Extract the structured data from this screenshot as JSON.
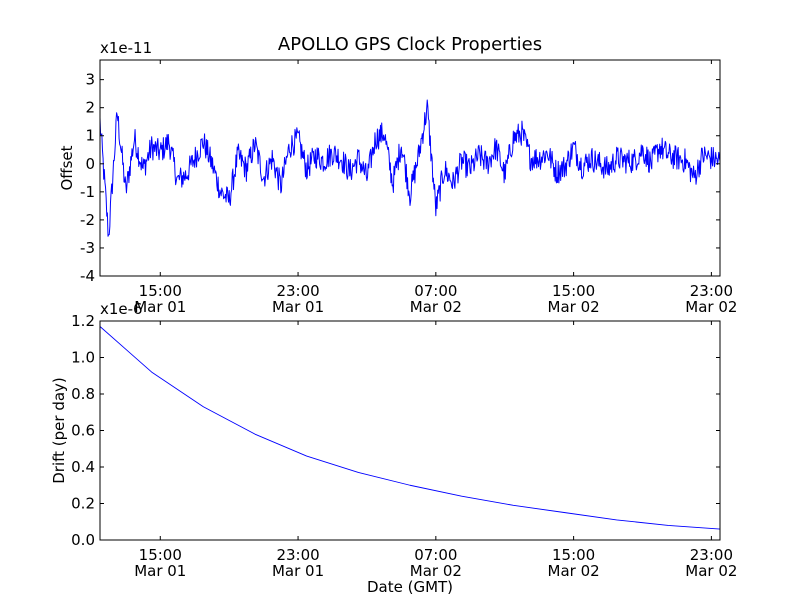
{
  "figure": {
    "title": "APOLLO GPS Clock Properties"
  },
  "chart_data": [
    {
      "type": "line",
      "title": "APOLLO GPS Clock Properties",
      "ylabel": "Offset",
      "xlabel": "",
      "y_multiplier_label": "x1e-11",
      "ylim": [
        -4,
        3.7
      ],
      "y_ticks": [
        -4,
        -3,
        -2,
        -1,
        0,
        1,
        2,
        3
      ],
      "x_ticks": [
        {
          "time": "15:00",
          "date": "Mar 01"
        },
        {
          "time": "23:00",
          "date": "Mar 01"
        },
        {
          "time": "07:00",
          "date": "Mar 02"
        },
        {
          "time": "15:00",
          "date": "Mar 02"
        },
        {
          "time": "23:00",
          "date": "Mar 02"
        }
      ],
      "xlim": [
        "Mar 01 11:30",
        "Mar 02 23:30"
      ],
      "grid": false,
      "series": [
        {
          "color": "#0000ff",
          "x": [
            "Mar 01 11:30",
            "Mar 01 12:00",
            "Mar 01 12:30",
            "Mar 01 13:00",
            "Mar 01 13:30",
            "Mar 01 14:00",
            "Mar 01 14:30",
            "Mar 01 15:00",
            "Mar 01 15:30",
            "Mar 01 16:00",
            "Mar 01 16:30",
            "Mar 01 17:00",
            "Mar 01 17:30",
            "Mar 01 18:00",
            "Mar 01 18:30",
            "Mar 01 19:00",
            "Mar 01 19:30",
            "Mar 01 20:00",
            "Mar 01 20:30",
            "Mar 01 21:00",
            "Mar 01 21:30",
            "Mar 01 22:00",
            "Mar 01 22:30",
            "Mar 01 23:00",
            "Mar 01 23:30",
            "Mar 02 00:00",
            "Mar 02 00:30",
            "Mar 02 01:00",
            "Mar 02 01:30",
            "Mar 02 02:00",
            "Mar 02 02:30",
            "Mar 02 03:00",
            "Mar 02 03:30",
            "Mar 02 04:00",
            "Mar 02 04:30",
            "Mar 02 05:00",
            "Mar 02 05:30",
            "Mar 02 06:00",
            "Mar 02 06:30",
            "Mar 02 07:00",
            "Mar 02 07:30",
            "Mar 02 08:00",
            "Mar 02 08:30",
            "Mar 02 09:00",
            "Mar 02 09:30",
            "Mar 02 10:00",
            "Mar 02 10:30",
            "Mar 02 11:00",
            "Mar 02 11:30",
            "Mar 02 12:00",
            "Mar 02 12:30",
            "Mar 02 13:00",
            "Mar 02 13:30",
            "Mar 02 14:00",
            "Mar 02 14:30",
            "Mar 02 15:00",
            "Mar 02 15:30",
            "Mar 02 16:00",
            "Mar 02 16:30",
            "Mar 02 17:00",
            "Mar 02 17:30",
            "Mar 02 18:00",
            "Mar 02 18:30",
            "Mar 02 19:00",
            "Mar 02 19:30",
            "Mar 02 20:00",
            "Mar 02 20:30",
            "Mar 02 21:00",
            "Mar 02 21:30",
            "Mar 02 22:00",
            "Mar 02 22:30",
            "Mar 02 23:00",
            "Mar 02 23:30"
          ],
          "y": [
            1.5,
            -2.6,
            1.8,
            -1.0,
            0.9,
            -0.2,
            0.6,
            0.4,
            0.8,
            -0.6,
            -0.4,
            0.2,
            0.8,
            0.0,
            -1.0,
            -1.3,
            0.3,
            -0.2,
            0.7,
            -0.5,
            0.2,
            -0.8,
            0.6,
            0.9,
            -0.2,
            0.3,
            0.1,
            0.4,
            0.2,
            -0.3,
            0.2,
            -0.5,
            0.9,
            1.1,
            -0.7,
            0.7,
            -1.1,
            0.3,
            2.0,
            -1.6,
            -0.2,
            -0.7,
            0.1,
            -0.2,
            0.3,
            0.0,
            0.6,
            -0.4,
            0.9,
            1.1,
            0.2,
            0.2,
            0.4,
            -0.3,
            -0.1,
            0.6,
            -0.1,
            0.2,
            0.0,
            -0.2,
            0.2,
            0.1,
            0.1,
            0.5,
            0.0,
            0.6,
            0.3,
            0.2,
            0.1,
            -0.5,
            0.3,
            0.2,
            0.1
          ]
        }
      ]
    },
    {
      "type": "line",
      "ylabel": "Drift (per day)",
      "xlabel": "Date (GMT)",
      "y_multiplier_label": "x1e-6",
      "ylim": [
        0.0,
        1.2
      ],
      "y_ticks": [
        0.0,
        0.2,
        0.4,
        0.6,
        0.8,
        1.0,
        1.2
      ],
      "y_tick_labels": [
        "0.0",
        "0.2",
        "0.4",
        "0.6",
        "0.8",
        "1.0",
        "1.2"
      ],
      "x_ticks": [
        {
          "time": "15:00",
          "date": "Mar 01"
        },
        {
          "time": "23:00",
          "date": "Mar 01"
        },
        {
          "time": "07:00",
          "date": "Mar 02"
        },
        {
          "time": "15:00",
          "date": "Mar 02"
        },
        {
          "time": "23:00",
          "date": "Mar 02"
        }
      ],
      "xlim": [
        "Mar 01 11:30",
        "Mar 02 23:30"
      ],
      "grid": false,
      "series": [
        {
          "color": "#0000ff",
          "x": [
            "Mar 01 11:30",
            "Mar 01 14:30",
            "Mar 01 17:30",
            "Mar 01 20:30",
            "Mar 01 23:30",
            "Mar 02 02:30",
            "Mar 02 05:30",
            "Mar 02 08:30",
            "Mar 02 11:30",
            "Mar 02 14:30",
            "Mar 02 17:30",
            "Mar 02 20:30",
            "Mar 02 23:30"
          ],
          "y": [
            1.17,
            0.92,
            0.73,
            0.58,
            0.46,
            0.37,
            0.3,
            0.24,
            0.19,
            0.15,
            0.11,
            0.08,
            0.06
          ]
        }
      ]
    }
  ]
}
